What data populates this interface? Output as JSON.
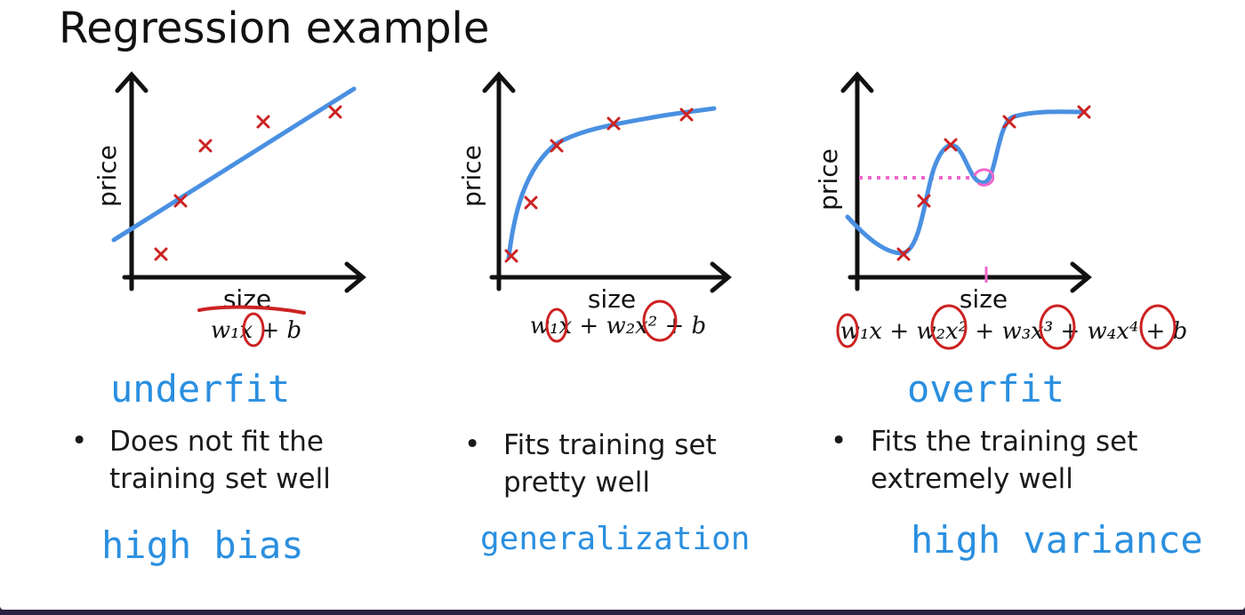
{
  "slide": {
    "title": "Regression example"
  },
  "panels": [
    {
      "id": "underfit",
      "xlabel": "size",
      "ylabel": "price",
      "formula": "w₁x + b",
      "verdict": "underfit",
      "bullet_lines": [
        "Does not fit the",
        "training set well"
      ],
      "footnote": "high bias"
    },
    {
      "id": "just-right",
      "xlabel": "size",
      "ylabel": "price",
      "formula": "w₁x + w₂x² + b",
      "verdict": "",
      "bullet_lines": [
        "Fits training set",
        "pretty well"
      ],
      "footnote": "generalization"
    },
    {
      "id": "overfit",
      "xlabel": "size",
      "ylabel": "price",
      "formula": "w₁x + w₂x² + w₃x³ + w₄x⁴ + b",
      "verdict": "overfit",
      "bullet_lines": [
        "Fits the training set",
        "extremely well"
      ],
      "footnote": "high variance"
    }
  ],
  "bullet_symbol": "•",
  "colors": {
    "fit_curve": "#4a90e2",
    "data_point": "#cc2222",
    "annotation_ink": "#2a8fe0",
    "highlight": "#ee66cc",
    "circle_ink": "#cc2222"
  }
}
